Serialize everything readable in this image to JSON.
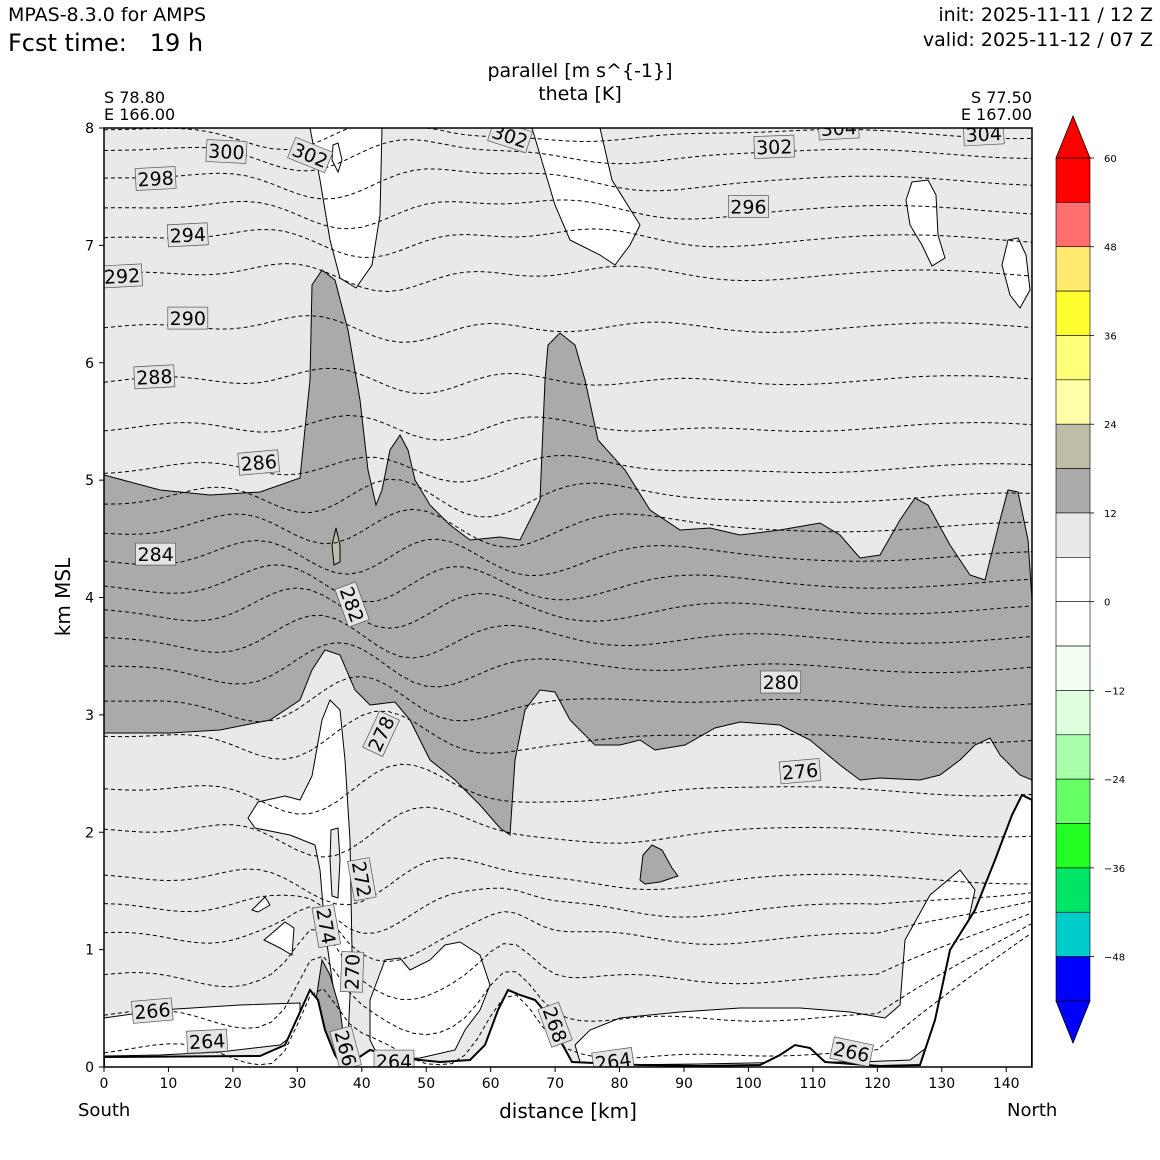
{
  "header": {
    "model": "MPAS-8.3.0 for AMPS",
    "fcst_label": "Fcst time:",
    "fcst_value": "19 h",
    "init": "init: 2025-11-11 / 12 Z",
    "valid": "valid: 2025-11-12 / 07 Z"
  },
  "fields": {
    "shaded": "parallel [m s^{-1}]",
    "contoured": "theta [K]"
  },
  "endpoints": {
    "left_lat": "S 78.80",
    "left_lon": "E 166.00",
    "right_lat": "S 77.50",
    "right_lon": "E 167.00",
    "left_dir": "South",
    "right_dir": "North"
  },
  "chart_data": {
    "type": "cross-section",
    "xlabel": "distance [km]",
    "ylabel": "km MSL",
    "xlim": [
      0,
      144
    ],
    "ylim": [
      0,
      8
    ],
    "xticks": [
      0,
      10,
      20,
      30,
      40,
      50,
      60,
      70,
      80,
      90,
      100,
      110,
      120,
      130,
      140
    ],
    "yticks": [
      0,
      1,
      2,
      3,
      4,
      5,
      6,
      7,
      8
    ],
    "theta_levels": [
      264,
      266,
      268,
      270,
      272,
      274,
      276,
      278,
      280,
      282,
      284,
      286,
      288,
      290,
      292,
      294,
      296,
      298,
      300,
      302,
      304
    ],
    "theta_labels": [
      {
        "text": "264",
        "x": 16,
        "y": 0.22,
        "rot": -3
      },
      {
        "text": "264",
        "x": 45,
        "y": 0.05,
        "rot": 0
      },
      {
        "text": "264",
        "x": 79,
        "y": 0.05,
        "rot": -8
      },
      {
        "text": "266",
        "x": 7.5,
        "y": 0.48,
        "rot": -5
      },
      {
        "text": "266",
        "x": 116,
        "y": 0.13,
        "rot": 12
      },
      {
        "text": "266",
        "x": 37.5,
        "y": 0.16,
        "rot": 75
      },
      {
        "text": "268",
        "x": 70,
        "y": 0.36,
        "rot": 70
      },
      {
        "text": "270",
        "x": 38.5,
        "y": 0.81,
        "rot": -88
      },
      {
        "text": "272",
        "x": 40,
        "y": 1.6,
        "rot": 80
      },
      {
        "text": "274",
        "x": 34.5,
        "y": 1.2,
        "rot": 80
      },
      {
        "text": "276",
        "x": 108,
        "y": 2.52,
        "rot": -5
      },
      {
        "text": "278",
        "x": 43,
        "y": 2.84,
        "rot": -65
      },
      {
        "text": "280",
        "x": 105,
        "y": 3.28,
        "rot": 0
      },
      {
        "text": "282",
        "x": 38.5,
        "y": 3.94,
        "rot": 70
      },
      {
        "text": "284",
        "x": 8,
        "y": 4.37,
        "rot": 0
      },
      {
        "text": "286",
        "x": 24,
        "y": 5.15,
        "rot": -5
      },
      {
        "text": "288",
        "x": 7.8,
        "y": 5.88,
        "rot": -3
      },
      {
        "text": "290",
        "x": 13,
        "y": 6.38,
        "rot": 0
      },
      {
        "text": "292",
        "x": 2.8,
        "y": 6.74,
        "rot": -3
      },
      {
        "text": "294",
        "x": 13,
        "y": 7.09,
        "rot": -3
      },
      {
        "text": "296",
        "x": 100,
        "y": 7.33,
        "rot": 0
      },
      {
        "text": "298",
        "x": 8,
        "y": 7.57,
        "rot": -3
      },
      {
        "text": "300",
        "x": 19,
        "y": 7.8,
        "rot": 3
      },
      {
        "text": "302",
        "x": 32,
        "y": 7.77,
        "rot": 22
      },
      {
        "text": "302",
        "x": 63,
        "y": 7.93,
        "rot": 18
      },
      {
        "text": "302",
        "x": 104,
        "y": 7.84,
        "rot": -2
      },
      {
        "text": "304",
        "x": 114,
        "y": 8.0,
        "rot": -3
      },
      {
        "text": "304",
        "x": 136.5,
        "y": 7.95,
        "rot": -3
      }
    ],
    "colorbar": {
      "ticks": [
        "60",
        "48",
        "36",
        "24",
        "12",
        "0",
        "−12",
        "−24",
        "−36",
        "−48"
      ],
      "tick_values": [
        60,
        48,
        36,
        24,
        12,
        0,
        -12,
        -24,
        -36,
        -48
      ],
      "colors": [
        "#ff0000",
        "#ff6e6e",
        "#ffe96e",
        "#ffff30",
        "#ffff78",
        "#ffffaa",
        "#bebea8",
        "#aaaaaa",
        "#e9e9e9",
        "#ffffff",
        "#ffffff",
        "#f2fff2",
        "#ddffdd",
        "#aaffaa",
        "#66ff66",
        "#22ff22",
        "#00e566",
        "#00cccc",
        "#0000ff"
      ],
      "extend": "both",
      "under_color": "#0000ff",
      "over_color": "#ff0000"
    }
  }
}
